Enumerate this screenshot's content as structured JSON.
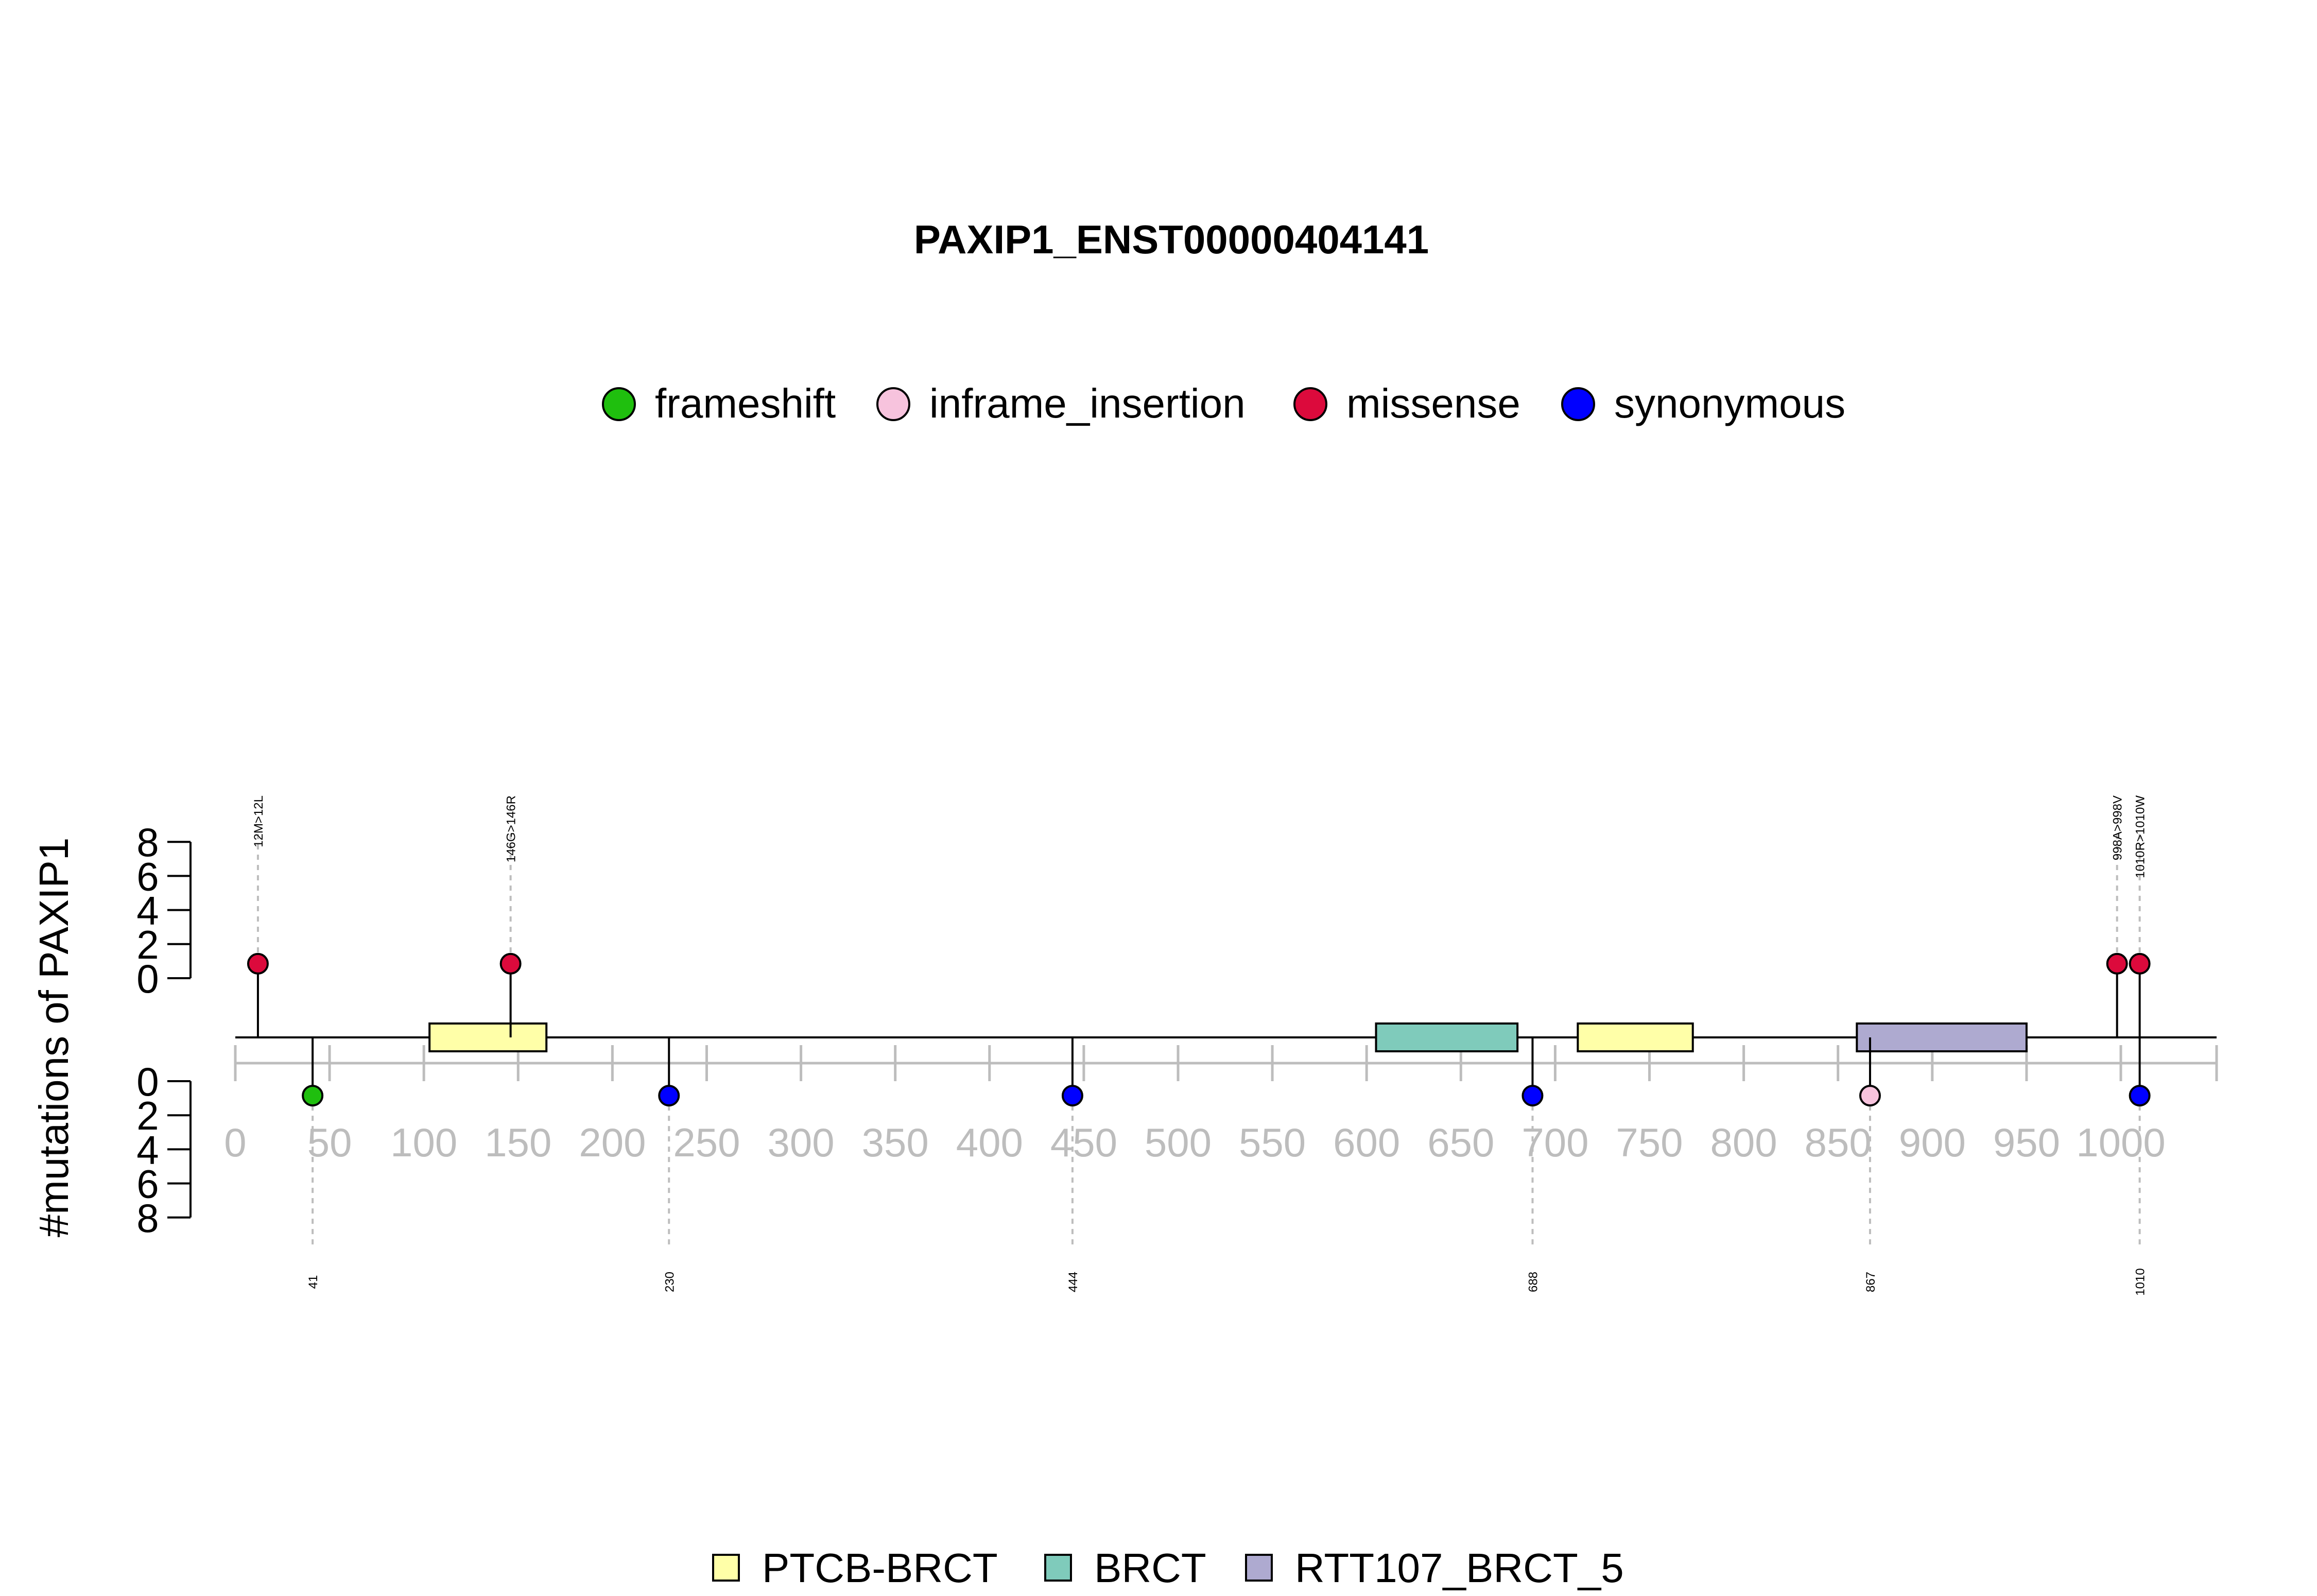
{
  "chart_data": {
    "type": "lollipop",
    "title": "PAXIP1_ENST00000404141",
    "ylabel": "#mutations of PAXIP1",
    "xlim": [
      0,
      1050
    ],
    "x_ticks": [
      0,
      50,
      100,
      150,
      200,
      250,
      300,
      350,
      400,
      450,
      500,
      550,
      600,
      650,
      700,
      750,
      800,
      850,
      900,
      950,
      1000
    ],
    "y_ticks_top": [
      0,
      2,
      4,
      6,
      8
    ],
    "y_ticks_bottom": [
      0,
      2,
      4,
      6,
      8
    ],
    "legend_types": [
      {
        "name": "frameshift",
        "color": "#1fbf0e"
      },
      {
        "name": "inframe_insertion",
        "color": "#f7c3dd"
      },
      {
        "name": "missense",
        "color": "#dc0a3c"
      },
      {
        "name": "synonymous",
        "color": "#0000ff"
      }
    ],
    "domains_legend": [
      {
        "name": "PTCB-BRCT",
        "color": "#ffffa8"
      },
      {
        "name": "BRCT",
        "color": "#7fcbbb"
      },
      {
        "name": "RTT107_BRCT_5",
        "color": "#aeaad0"
      }
    ],
    "domains": [
      {
        "name": "PTCB-BRCT",
        "start": 103,
        "end": 165
      },
      {
        "name": "BRCT",
        "start": 605,
        "end": 680
      },
      {
        "name": "PTCB-BRCT",
        "start": 712,
        "end": 773
      },
      {
        "name": "RTT107_BRCT_5",
        "start": 860,
        "end": 950
      }
    ],
    "mutations_top": [
      {
        "pos": 12,
        "count": 1,
        "type": "missense",
        "label": "12M>12L"
      },
      {
        "pos": 146,
        "count": 1,
        "type": "missense",
        "label": "146G>146R"
      },
      {
        "pos": 998,
        "count": 1,
        "type": "missense",
        "label": "998A>998V"
      },
      {
        "pos": 1010,
        "count": 1,
        "type": "missense",
        "label": "1010R>1010W"
      }
    ],
    "mutations_bottom": [
      {
        "pos": 41,
        "count": 1,
        "type": "frameshift",
        "label": "41"
      },
      {
        "pos": 230,
        "count": 1,
        "type": "synonymous",
        "label": "230"
      },
      {
        "pos": 444,
        "count": 1,
        "type": "synonymous",
        "label": "444"
      },
      {
        "pos": 688,
        "count": 1,
        "type": "synonymous",
        "label": "688"
      },
      {
        "pos": 867,
        "count": 1,
        "type": "inframe_insertion",
        "label": "867"
      },
      {
        "pos": 1010,
        "count": 1,
        "type": "synonymous",
        "label": "1010"
      }
    ]
  }
}
